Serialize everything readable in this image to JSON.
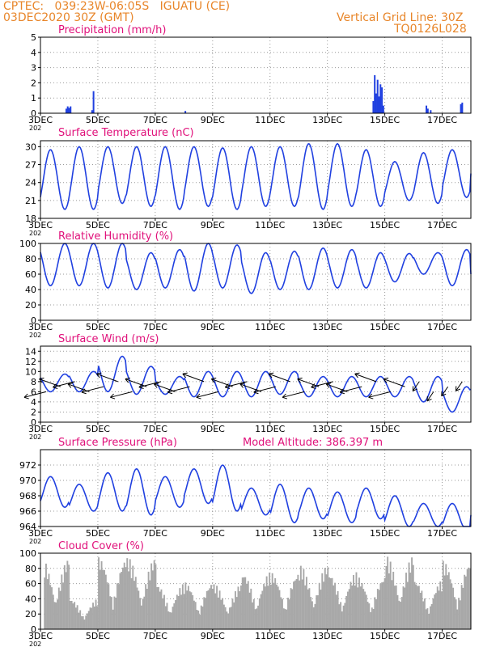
{
  "header": {
    "left_line1": "CPTEC:   039:23W-06:05S   IGUATU (CE)",
    "left_line2": "03DEC2020 30Z (GMT)",
    "right_line1": "Vertical Grid Line: 30Z",
    "right_line2": "TQ0126L028"
  },
  "colors": {
    "header": "#e8862a",
    "title": "#e0107a",
    "series": "#2040e0",
    "cloud": "#a8a8a8",
    "wind_arrow": "#000000"
  },
  "x_axis": {
    "ticks": [
      "3DEC",
      "5DEC",
      "7DEC",
      "9DEC",
      "11DEC",
      "13DEC",
      "15DEC",
      "17DEC"
    ],
    "tick_days": [
      3,
      5,
      7,
      9,
      11,
      13,
      15,
      17
    ],
    "range_days": [
      3,
      18
    ],
    "year_fragment": "202"
  },
  "chart_data": [
    {
      "id": "precip",
      "type": "bar",
      "title": "Precipitation (mm/h)",
      "ylim": [
        0,
        5
      ],
      "yticks": [
        0,
        1,
        2,
        3,
        4,
        5
      ],
      "points": [
        [
          3.9,
          0.3
        ],
        [
          3.95,
          0.45
        ],
        [
          4.0,
          0.35
        ],
        [
          4.05,
          0.45
        ],
        [
          4.8,
          0.2
        ],
        [
          4.85,
          1.45
        ],
        [
          8.05,
          0.15
        ],
        [
          14.6,
          0.8
        ],
        [
          14.65,
          2.5
        ],
        [
          14.7,
          1.3
        ],
        [
          14.75,
          2.2
        ],
        [
          14.8,
          1.1
        ],
        [
          14.85,
          1.9
        ],
        [
          14.9,
          1.7
        ],
        [
          14.95,
          0.5
        ],
        [
          16.45,
          0.5
        ],
        [
          16.5,
          0.3
        ],
        [
          16.6,
          0.2
        ],
        [
          17.65,
          0.6
        ],
        [
          17.7,
          0.7
        ]
      ]
    },
    {
      "id": "temp",
      "type": "line",
      "title": "Surface Temperature (nC)",
      "ylim": [
        18,
        31
      ],
      "yticks": [
        18,
        21,
        24,
        27,
        30
      ],
      "daily": [
        [
          19.5,
          29.5
        ],
        [
          19.5,
          30
        ],
        [
          20.5,
          30
        ],
        [
          20,
          30
        ],
        [
          19.5,
          30
        ],
        [
          20,
          30
        ],
        [
          19.5,
          29.8
        ],
        [
          20,
          30
        ],
        [
          20,
          30
        ],
        [
          19.5,
          30.5
        ],
        [
          20,
          30.5
        ],
        [
          20,
          29.5
        ],
        [
          21,
          27.5
        ],
        [
          20.5,
          29
        ],
        [
          21.5,
          29.5
        ],
        [
          21,
          30
        ]
      ],
      "end_value": 25.5
    },
    {
      "id": "rh",
      "type": "line",
      "title": "Relative Humidity (%)",
      "ylim": [
        0,
        100
      ],
      "yticks": [
        0,
        20,
        40,
        60,
        80,
        100
      ],
      "daily": [
        [
          100,
          45
        ],
        [
          100,
          45
        ],
        [
          100,
          42
        ],
        [
          88,
          40
        ],
        [
          92,
          42
        ],
        [
          100,
          38
        ],
        [
          98,
          42
        ],
        [
          88,
          35
        ],
        [
          90,
          40
        ],
        [
          94,
          40
        ],
        [
          92,
          42
        ],
        [
          88,
          42
        ],
        [
          87,
          50
        ],
        [
          88,
          60
        ],
        [
          92,
          45
        ],
        [
          90,
          45
        ]
      ],
      "end_value": 60
    },
    {
      "id": "wind",
      "type": "line",
      "title": "Surface Wind (m/s)",
      "ylim": [
        0,
        15
      ],
      "yticks": [
        0,
        2,
        4,
        6,
        8,
        10,
        12,
        14
      ],
      "daily": [
        [
          9.5,
          6
        ],
        [
          10,
          6
        ],
        [
          13,
          6
        ],
        [
          11,
          5.5
        ],
        [
          9,
          5.5
        ],
        [
          10,
          5
        ],
        [
          10,
          5
        ],
        [
          10,
          5
        ],
        [
          10,
          5.5
        ],
        [
          9,
          5
        ],
        [
          9,
          5
        ],
        [
          9,
          5
        ],
        [
          9,
          5
        ],
        [
          9,
          4
        ],
        [
          7,
          2
        ],
        [
          3,
          2
        ]
      ],
      "end_value": 6.5
    },
    {
      "id": "pressure",
      "type": "line",
      "title": "Surface Pressure (hPa)",
      "annotation": "Model Altitude: 386.397 m",
      "ylim": [
        964,
        974
      ],
      "yticks": [
        964,
        966,
        968,
        970,
        972
      ],
      "daily": [
        [
          966.5,
          970.5
        ],
        [
          966,
          969.5
        ],
        [
          966,
          971
        ],
        [
          965.5,
          971.5
        ],
        [
          966.5,
          970.5
        ],
        [
          967,
          971.5
        ],
        [
          966,
          972
        ],
        [
          965.5,
          969
        ],
        [
          964.5,
          969.5
        ],
        [
          965,
          969
        ],
        [
          964.5,
          968.5
        ],
        [
          965,
          969
        ],
        [
          964,
          968
        ],
        [
          964,
          967
        ],
        [
          963.5,
          967
        ],
        [
          963.5,
          966
        ]
      ],
      "end_value": 965.5
    },
    {
      "id": "cloud",
      "type": "bar",
      "title": "Cloud Cover (%)",
      "ylim": [
        0,
        100
      ],
      "yticks": [
        0,
        20,
        40,
        60,
        80,
        100
      ],
      "daily_max": [
        95,
        40,
        95,
        95,
        60,
        62,
        60,
        75,
        75,
        85,
        75,
        70,
        98,
        65,
        90,
        55
      ]
    }
  ]
}
